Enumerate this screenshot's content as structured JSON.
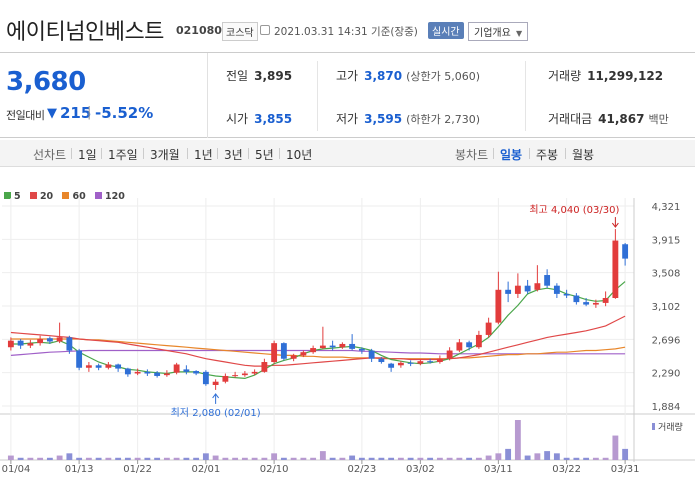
{
  "header": {
    "name": "에이티넘인베스트",
    "code": "021080",
    "market": "코스닥",
    "datetime": "2021.03.31 14:31 기준(장중)",
    "realtime": "실시간",
    "overview": "기업개요",
    "overview_chevron": "chevron-down-icon"
  },
  "summary": {
    "price": "3,680",
    "change_label": "전일대비",
    "change_arrow": "▼",
    "change_amount": "215",
    "change_pct": "-5.52%",
    "stats": {
      "prev_close": {
        "label": "전일",
        "value": "3,895"
      },
      "high": {
        "label": "고가",
        "value": "3,870",
        "sub": "(상한가 5,060)"
      },
      "volume": {
        "label": "거래량",
        "value": "11,299,122"
      },
      "open": {
        "label": "시가",
        "value": "3,855"
      },
      "low": {
        "label": "저가",
        "value": "3,595",
        "sub": "(하한가 2,730)"
      },
      "amount": {
        "label": "거래대금",
        "value": "41,867",
        "unit": "백만"
      }
    }
  },
  "tabs": {
    "line_label": "선차트",
    "periods": [
      "1일",
      "1주일",
      "3개월",
      "1년",
      "3년",
      "5년",
      "10년"
    ],
    "candle_label": "봉차트",
    "candle_periods": [
      "일봉",
      "주봉",
      "월봉"
    ],
    "active_candle": "일봉"
  },
  "legend": [
    {
      "label": "5",
      "color": "#4aa64a"
    },
    {
      "label": "20",
      "color": "#e04848"
    },
    {
      "label": "60",
      "color": "#e8862a"
    },
    {
      "label": "120",
      "color": "#a060c8"
    }
  ],
  "chart_data": {
    "type": "candlestick",
    "y_ticks": [
      "4,321",
      "3,915",
      "3,508",
      "3,102",
      "2,696",
      "2,290",
      "1,884"
    ],
    "x_ticks": [
      "01/04",
      "01/13",
      "01/22",
      "02/01",
      "02/10",
      "02/23",
      "03/02",
      "03/11",
      "03/22",
      "03/31"
    ],
    "ylim": [
      1884,
      4321
    ],
    "annotations": {
      "high": "최고 4,040 (03/30)",
      "low": "최저 2,080 (02/01)"
    },
    "volume_label": "거래량",
    "candles": [
      {
        "o": 2600,
        "c": 2680,
        "h": 2720,
        "l": 2560
      },
      {
        "o": 2680,
        "c": 2620,
        "h": 2700,
        "l": 2580
      },
      {
        "o": 2620,
        "c": 2650,
        "h": 2690,
        "l": 2590
      },
      {
        "o": 2650,
        "c": 2700,
        "h": 2740,
        "l": 2620
      },
      {
        "o": 2710,
        "c": 2670,
        "h": 2730,
        "l": 2640
      },
      {
        "o": 2670,
        "c": 2720,
        "h": 2900,
        "l": 2650
      },
      {
        "o": 2720,
        "c": 2560,
        "h": 2740,
        "l": 2520
      },
      {
        "o": 2560,
        "c": 2350,
        "h": 2580,
        "l": 2320
      },
      {
        "o": 2350,
        "c": 2380,
        "h": 2420,
        "l": 2300
      },
      {
        "o": 2380,
        "c": 2350,
        "h": 2400,
        "l": 2320
      },
      {
        "o": 2350,
        "c": 2390,
        "h": 2420,
        "l": 2330
      },
      {
        "o": 2390,
        "c": 2340,
        "h": 2400,
        "l": 2300
      },
      {
        "o": 2340,
        "c": 2270,
        "h": 2350,
        "l": 2240
      },
      {
        "o": 2280,
        "c": 2300,
        "h": 2340,
        "l": 2260
      },
      {
        "o": 2300,
        "c": 2280,
        "h": 2330,
        "l": 2250
      },
      {
        "o": 2290,
        "c": 2250,
        "h": 2310,
        "l": 2230
      },
      {
        "o": 2260,
        "c": 2280,
        "h": 2320,
        "l": 2240
      },
      {
        "o": 2290,
        "c": 2390,
        "h": 2410,
        "l": 2270
      },
      {
        "o": 2330,
        "c": 2300,
        "h": 2380,
        "l": 2270
      },
      {
        "o": 2310,
        "c": 2280,
        "h": 2320,
        "l": 2260
      },
      {
        "o": 2300,
        "c": 2150,
        "h": 2320,
        "l": 2130
      },
      {
        "o": 2140,
        "c": 2180,
        "h": 2210,
        "l": 2080
      },
      {
        "o": 2180,
        "c": 2250,
        "h": 2280,
        "l": 2160
      },
      {
        "o": 2250,
        "c": 2260,
        "h": 2300,
        "l": 2230
      },
      {
        "o": 2260,
        "c": 2280,
        "h": 2310,
        "l": 2240
      },
      {
        "o": 2280,
        "c": 2300,
        "h": 2330,
        "l": 2260
      },
      {
        "o": 2300,
        "c": 2420,
        "h": 2460,
        "l": 2290
      },
      {
        "o": 2420,
        "c": 2650,
        "h": 2680,
        "l": 2400
      },
      {
        "o": 2650,
        "c": 2460,
        "h": 2660,
        "l": 2440
      },
      {
        "o": 2460,
        "c": 2500,
        "h": 2520,
        "l": 2430
      },
      {
        "o": 2500,
        "c": 2540,
        "h": 2560,
        "l": 2480
      },
      {
        "o": 2540,
        "c": 2590,
        "h": 2620,
        "l": 2520
      },
      {
        "o": 2590,
        "c": 2620,
        "h": 2850,
        "l": 2580
      },
      {
        "o": 2620,
        "c": 2600,
        "h": 2680,
        "l": 2560
      },
      {
        "o": 2600,
        "c": 2640,
        "h": 2660,
        "l": 2580
      },
      {
        "o": 2640,
        "c": 2580,
        "h": 2760,
        "l": 2560
      },
      {
        "o": 2580,
        "c": 2560,
        "h": 2600,
        "l": 2520
      },
      {
        "o": 2560,
        "c": 2460,
        "h": 2580,
        "l": 2420
      },
      {
        "o": 2460,
        "c": 2420,
        "h": 2480,
        "l": 2400
      },
      {
        "o": 2400,
        "c": 2350,
        "h": 2410,
        "l": 2300
      },
      {
        "o": 2380,
        "c": 2410,
        "h": 2430,
        "l": 2350
      },
      {
        "o": 2410,
        "c": 2400,
        "h": 2440,
        "l": 2370
      },
      {
        "o": 2400,
        "c": 2430,
        "h": 2450,
        "l": 2380
      },
      {
        "o": 2430,
        "c": 2420,
        "h": 2460,
        "l": 2400
      },
      {
        "o": 2420,
        "c": 2460,
        "h": 2500,
        "l": 2400
      },
      {
        "o": 2460,
        "c": 2560,
        "h": 2600,
        "l": 2440
      },
      {
        "o": 2560,
        "c": 2660,
        "h": 2700,
        "l": 2540
      },
      {
        "o": 2660,
        "c": 2600,
        "h": 2680,
        "l": 2560
      },
      {
        "o": 2600,
        "c": 2750,
        "h": 2800,
        "l": 2580
      },
      {
        "o": 2750,
        "c": 2900,
        "h": 2960,
        "l": 2720
      },
      {
        "o": 2900,
        "c": 3300,
        "h": 3520,
        "l": 2880
      },
      {
        "o": 3300,
        "c": 3250,
        "h": 3400,
        "l": 3150
      },
      {
        "o": 3250,
        "c": 3350,
        "h": 3500,
        "l": 3200
      },
      {
        "o": 3350,
        "c": 3280,
        "h": 3420,
        "l": 3250
      },
      {
        "o": 3300,
        "c": 3380,
        "h": 3600,
        "l": 3280
      },
      {
        "o": 3480,
        "c": 3350,
        "h": 3550,
        "l": 3320
      },
      {
        "o": 3350,
        "c": 3250,
        "h": 3380,
        "l": 3200
      },
      {
        "o": 3250,
        "c": 3230,
        "h": 3300,
        "l": 3200
      },
      {
        "o": 3230,
        "c": 3150,
        "h": 3260,
        "l": 3120
      },
      {
        "o": 3150,
        "c": 3120,
        "h": 3200,
        "l": 3100
      },
      {
        "o": 3120,
        "c": 3140,
        "h": 3180,
        "l": 3080
      },
      {
        "o": 3140,
        "c": 3200,
        "h": 3280,
        "l": 3100
      },
      {
        "o": 3200,
        "c": 3900,
        "h": 4040,
        "l": 3190
      },
      {
        "o": 3855,
        "c": 3680,
        "h": 3870,
        "l": 3595
      }
    ],
    "ma5": [
      2640,
      2640,
      2650,
      2660,
      2650,
      2680,
      2630,
      2540,
      2480,
      2420,
      2380,
      2360,
      2330,
      2320,
      2300,
      2290,
      2280,
      2300,
      2300,
      2300,
      2270,
      2250,
      2240,
      2230,
      2220,
      2260,
      2330,
      2400,
      2440,
      2470,
      2520,
      2560,
      2580,
      2590,
      2600,
      2610,
      2590,
      2560,
      2500,
      2450,
      2430,
      2410,
      2400,
      2410,
      2430,
      2460,
      2520,
      2580,
      2640,
      2720,
      2850,
      2990,
      3110,
      3250,
      3300,
      3320,
      3300,
      3250,
      3220,
      3180,
      3160,
      3170,
      3300,
      3400
    ],
    "ma20": [
      2780,
      2770,
      2760,
      2750,
      2740,
      2730,
      2720,
      2700,
      2690,
      2680,
      2670,
      2660,
      2640,
      2620,
      2600,
      2580,
      2560,
      2540,
      2520,
      2490,
      2460,
      2440,
      2420,
      2400,
      2380,
      2370,
      2370,
      2380,
      2380,
      2390,
      2400,
      2410,
      2420,
      2430,
      2440,
      2450,
      2460,
      2470,
      2470,
      2460,
      2460,
      2450,
      2450,
      2450,
      2450,
      2460,
      2470,
      2490,
      2510,
      2540,
      2570,
      2600,
      2630,
      2660,
      2690,
      2720,
      2740,
      2760,
      2780,
      2800,
      2830,
      2860,
      2920,
      2980
    ],
    "ma60": [
      2700,
      2700,
      2700,
      2700,
      2700,
      2700,
      2700,
      2700,
      2690,
      2690,
      2680,
      2670,
      2660,
      2650,
      2640,
      2630,
      2620,
      2610,
      2600,
      2590,
      2580,
      2570,
      2560,
      2550,
      2540,
      2530,
      2520,
      2510,
      2500,
      2500,
      2490,
      2490,
      2480,
      2480,
      2480,
      2470,
      2470,
      2470,
      2460,
      2460,
      2460,
      2460,
      2460,
      2460,
      2460,
      2460,
      2470,
      2470,
      2480,
      2490,
      2500,
      2510,
      2510,
      2520,
      2520,
      2530,
      2540,
      2540,
      2550,
      2560,
      2560,
      2570,
      2580,
      2600
    ],
    "ma120": [
      2500,
      2510,
      2520,
      2530,
      2540,
      2545,
      2550,
      2555,
      2560,
      2560,
      2560,
      2560,
      2560,
      2560,
      2560,
      2560,
      2560,
      2560,
      2560,
      2560,
      2560,
      2560,
      2560,
      2560,
      2560,
      2560,
      2560,
      2560,
      2560,
      2560,
      2560,
      2560,
      2560,
      2560,
      2560,
      2560,
      2550,
      2550,
      2545,
      2540,
      2535,
      2530,
      2530,
      2525,
      2520,
      2520,
      2520,
      2520,
      2520,
      2520,
      2520,
      2520,
      2520,
      2520,
      2520,
      2520,
      2520,
      2520,
      2520,
      2520,
      2520,
      2520,
      2520,
      2520
    ],
    "volumes": [
      2,
      1,
      1,
      1,
      1,
      2,
      3,
      1,
      1,
      1,
      1,
      1,
      1,
      1,
      1,
      1,
      1,
      1,
      1,
      1,
      3,
      2,
      1,
      1,
      1,
      1,
      1,
      3,
      1,
      1,
      1,
      1,
      4,
      1,
      1,
      2,
      1,
      1,
      1,
      1,
      1,
      1,
      1,
      1,
      1,
      1,
      1,
      1,
      1,
      2,
      3,
      5,
      18,
      2,
      3,
      4,
      3,
      1,
      1,
      1,
      1,
      1,
      11,
      5
    ]
  }
}
